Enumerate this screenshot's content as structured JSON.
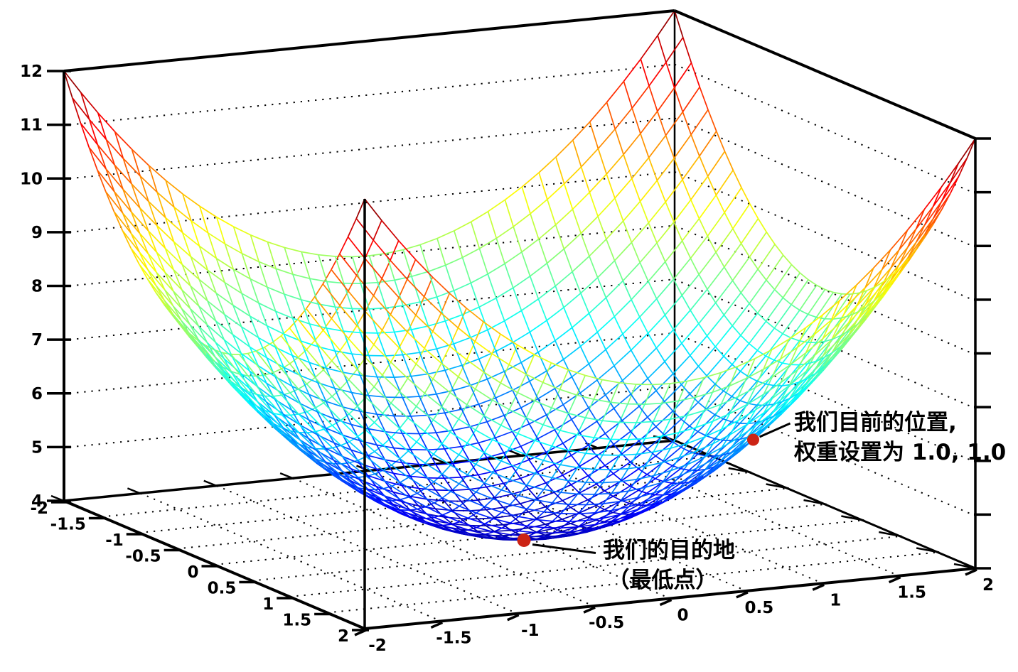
{
  "chart_data": {
    "type": "surface-wireframe",
    "title": "",
    "surface": {
      "formula": "z = x^2 + y^2 + 4",
      "x_coeff": 1,
      "y_coeff": 1,
      "z_offset": 4
    },
    "x_range": [
      -2,
      2
    ],
    "y_range": [
      -2,
      2
    ],
    "z_range": [
      4,
      12
    ],
    "x_ticks": [
      -2,
      -1.5,
      -1,
      -0.5,
      0,
      0.5,
      1,
      1.5,
      2
    ],
    "x_tick_labels": [
      "-2",
      "-1.5",
      "-1",
      "-0.5",
      "0",
      "0.5",
      "1",
      "1.5",
      "2"
    ],
    "y_ticks": [
      -2,
      -1.5,
      -1,
      -0.5,
      0,
      0.5,
      1,
      1.5,
      2
    ],
    "y_tick_labels": [
      "-2",
      "-1.5",
      "-1",
      "-0.5",
      "0",
      "0.5",
      "1",
      "1.5",
      "2"
    ],
    "z_ticks": [
      4,
      5,
      6,
      7,
      8,
      9,
      10,
      11,
      12
    ],
    "z_tick_labels": [
      "4",
      "5",
      "6",
      "7",
      "8",
      "9",
      "10",
      "11",
      "12"
    ],
    "wall_grid_z": [
      5,
      6,
      7,
      8,
      9,
      10,
      11
    ],
    "mesh_divisions": 36,
    "colormap": "jet",
    "grid_style": "dotted",
    "legend": "none",
    "colors": {
      "edges": "#000000",
      "grid": "#000000",
      "marker": "#cc2415",
      "text": "#000000",
      "background": "#ffffff"
    },
    "markers": [
      {
        "name": "current-position",
        "x": 1.0,
        "y": 1.0,
        "z": 6.0,
        "label_lines": [
          "我们目前的位置,",
          "权重设置为 1.0, 1.0"
        ]
      },
      {
        "name": "destination",
        "x": 0.0,
        "y": 0.0,
        "z": 4.0,
        "label_lines": [
          "我们的目的地",
          "（最低点）"
        ]
      }
    ]
  }
}
